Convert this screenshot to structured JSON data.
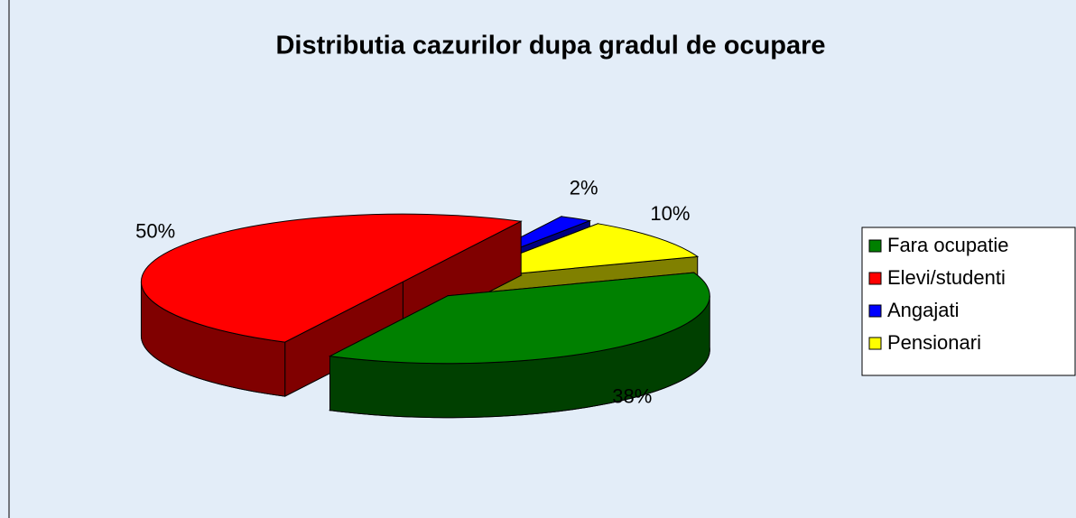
{
  "chart_data": {
    "type": "pie",
    "title": "Distributia cazurilor dupa gradul de ocupare",
    "categories": [
      "Fara ocupatie",
      "Elevi/studenti",
      "Angajati",
      "Pensionari"
    ],
    "values": [
      38,
      50,
      2,
      10
    ],
    "value_labels": [
      "38%",
      "50%",
      "2%",
      "10%"
    ],
    "colors": [
      "#008000",
      "#ff0000",
      "#0000ff",
      "#ffff00"
    ],
    "legend": "right"
  }
}
